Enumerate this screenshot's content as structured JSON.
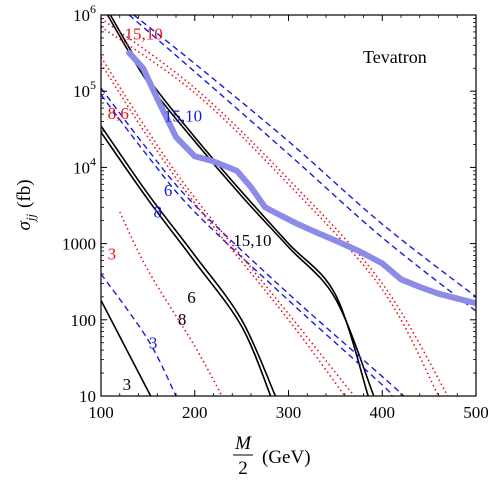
{
  "chart_data": {
    "type": "line",
    "title": "",
    "annotation": "Tevatron",
    "xlabel": {
      "numerator": "M",
      "denominator": "2",
      "unit": "(GeV)"
    },
    "ylabel": {
      "symbol": "σ",
      "subscript": "jj",
      "unit": "(fb)"
    },
    "xlim": [
      100,
      500
    ],
    "ylim": [
      10,
      1000000
    ],
    "yscale": "log",
    "xticks": [
      100,
      200,
      300,
      400,
      500
    ],
    "xtick_labels": [
      "100",
      "200",
      "300",
      "400",
      "500"
    ],
    "yticks": [
      10,
      100,
      1000,
      10000,
      100000,
      1000000
    ],
    "ytick_labels": [
      {
        "text": "10"
      },
      {
        "text": "100"
      },
      {
        "text": "1000"
      },
      {
        "base": "10",
        "exp": "4"
      },
      {
        "base": "10",
        "exp": "5"
      },
      {
        "base": "10",
        "exp": "6"
      }
    ],
    "colors": {
      "black": "#000000",
      "blue": "#1a1adb",
      "red": "#e8141e",
      "limit": "#8c8ce8"
    },
    "series": [
      {
        "style": "black-solid",
        "points": [
          [
            107,
            1000000
          ],
          [
            150,
            130000
          ],
          [
            200,
            22000
          ],
          [
            250,
            4200
          ],
          [
            300,
            900
          ],
          [
            350,
            190
          ],
          [
            391,
            10
          ]
        ]
      },
      {
        "style": "black-solid",
        "points": [
          [
            110,
            1000000
          ],
          [
            150,
            150000
          ],
          [
            200,
            25000
          ],
          [
            250,
            4800
          ],
          [
            300,
            1000
          ],
          [
            350,
            215
          ],
          [
            385,
            10
          ]
        ]
      },
      {
        "style": "black-solid",
        "points": [
          [
            100,
            35000
          ],
          [
            150,
            4500
          ],
          [
            200,
            700
          ],
          [
            250,
            100
          ],
          [
            286,
            10
          ]
        ]
      },
      {
        "style": "black-solid",
        "points": [
          [
            100,
            29000
          ],
          [
            150,
            3800
          ],
          [
            200,
            580
          ],
          [
            250,
            82
          ],
          [
            281,
            10
          ]
        ]
      },
      {
        "style": "black-solid",
        "points": [
          [
            100,
            180
          ],
          [
            130,
            35
          ],
          [
            153,
            10
          ]
        ]
      },
      {
        "style": "blue-dashed",
        "points": [
          [
            130,
            1000000
          ],
          [
            200,
            180000
          ],
          [
            300,
            15000
          ],
          [
            400,
            1200
          ],
          [
            500,
            130
          ]
        ]
      },
      {
        "style": "blue-dashed",
        "points": [
          [
            135,
            1000000
          ],
          [
            200,
            230000
          ],
          [
            300,
            22000
          ],
          [
            400,
            1800
          ],
          [
            500,
            200
          ]
        ]
      },
      {
        "style": "blue-dashed",
        "points": [
          [
            100,
            110000
          ],
          [
            150,
            17000
          ],
          [
            200,
            3200
          ],
          [
            300,
            220
          ],
          [
            400,
            18
          ],
          [
            423,
            10
          ]
        ]
      },
      {
        "style": "blue-dashed",
        "points": [
          [
            100,
            90000
          ],
          [
            150,
            14000
          ],
          [
            200,
            2600
          ],
          [
            300,
            180
          ],
          [
            400,
            14
          ],
          [
            410,
            10
          ]
        ]
      },
      {
        "style": "blue-dashed",
        "points": [
          [
            100,
            400
          ],
          [
            150,
            55
          ],
          [
            180,
            10
          ]
        ]
      },
      {
        "style": "red-dotted",
        "points": [
          [
            100,
            900000
          ],
          [
            200,
            110000
          ],
          [
            300,
            7000
          ],
          [
            400,
            300
          ],
          [
            470,
            10
          ]
        ]
      },
      {
        "style": "red-dotted",
        "points": [
          [
            100,
            700000
          ],
          [
            200,
            95000
          ],
          [
            300,
            6000
          ],
          [
            400,
            250
          ],
          [
            460,
            10
          ]
        ]
      },
      {
        "style": "red-dotted",
        "points": [
          [
            100,
            280000
          ],
          [
            150,
            30000
          ],
          [
            200,
            4000
          ],
          [
            300,
            120
          ],
          [
            370,
            10
          ]
        ]
      },
      {
        "style": "red-dotted",
        "points": [
          [
            100,
            230000
          ],
          [
            150,
            25000
          ],
          [
            200,
            3400
          ],
          [
            300,
            100
          ],
          [
            360,
            10
          ]
        ]
      },
      {
        "style": "red-dotted",
        "points": [
          [
            120,
            2600
          ],
          [
            150,
            450
          ],
          [
            200,
            45
          ],
          [
            229,
            10
          ]
        ]
      },
      {
        "style": "limit",
        "points": [
          [
            130,
            320000
          ],
          [
            145,
            200000
          ],
          [
            160,
            80000
          ],
          [
            180,
            25000
          ],
          [
            200,
            14000
          ],
          [
            220,
            12000
          ],
          [
            245,
            9000
          ],
          [
            260,
            5500
          ],
          [
            275,
            3000
          ],
          [
            290,
            2400
          ],
          [
            310,
            1800
          ],
          [
            330,
            1400
          ],
          [
            350,
            1100
          ],
          [
            375,
            800
          ],
          [
            400,
            550
          ],
          [
            420,
            340
          ],
          [
            440,
            270
          ],
          [
            460,
            220
          ],
          [
            480,
            190
          ],
          [
            500,
            165
          ]
        ]
      }
    ],
    "labels": [
      {
        "text": "15,10",
        "color": "red",
        "x": 125,
        "y": 480000
      },
      {
        "text": "8,6",
        "color": "red",
        "x": 107,
        "y": 43000
      },
      {
        "text": "3",
        "color": "red",
        "x": 107,
        "y": 620
      },
      {
        "text": "15,10",
        "color": "blue",
        "x": 167,
        "y": 40000
      },
      {
        "text": "6",
        "color": "blue",
        "x": 167,
        "y": 4200
      },
      {
        "text": "8",
        "color": "blue",
        "x": 156,
        "y": 2200
      },
      {
        "text": "3",
        "color": "blue",
        "x": 151,
        "y": 42
      },
      {
        "text": "15,10",
        "color": "black",
        "x": 241,
        "y": 930
      },
      {
        "text": "6",
        "color": "black",
        "x": 192,
        "y": 165
      },
      {
        "text": "8",
        "color": "black",
        "x": 182,
        "y": 85
      },
      {
        "text": "3",
        "color": "black",
        "x": 123,
        "y": 12
      }
    ]
  }
}
